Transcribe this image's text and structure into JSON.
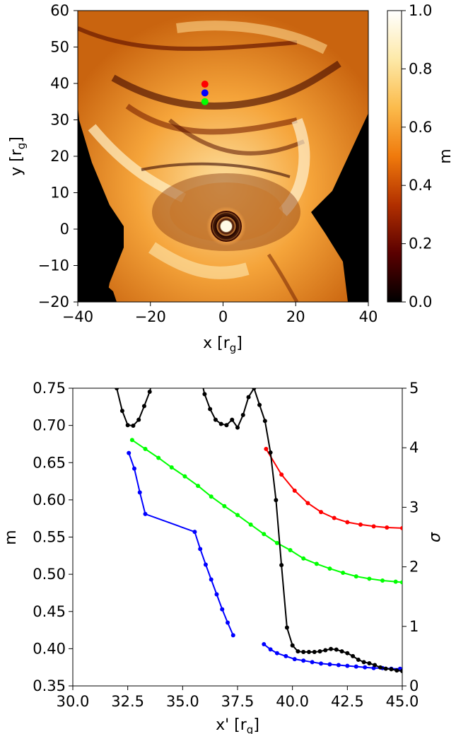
{
  "chart_data": [
    {
      "type": "heatmap",
      "xlabel": "x [r",
      "xlabel_sub": "g",
      "xlabel_close": "]",
      "ylabel": "y [r",
      "ylabel_sub": "g",
      "ylabel_close": "]",
      "xlim": [
        -40,
        40
      ],
      "ylim": [
        -20,
        60
      ],
      "xticks": [
        -40,
        -20,
        0,
        20,
        40
      ],
      "xtick_labels": [
        "−40",
        "−20",
        "0",
        "20",
        "40"
      ],
      "yticks": [
        -20,
        -10,
        0,
        10,
        20,
        30,
        40,
        50,
        60
      ],
      "ytick_labels": [
        "−20",
        "−10",
        "0",
        "10",
        "20",
        "30",
        "40",
        "50",
        "60"
      ],
      "colorbar": {
        "label": "m",
        "range": [
          0.0,
          1.0
        ],
        "ticks": [
          0.0,
          0.2,
          0.4,
          0.6,
          0.8,
          1.0
        ],
        "tick_labels": [
          "0.0",
          "0.2",
          "0.4",
          "0.6",
          "0.8",
          "1.0"
        ],
        "colormap": [
          "#000000",
          "#5a0000",
          "#b12f00",
          "#f07a0c",
          "#fbbb4c",
          "#fde9a8",
          "#ffffff"
        ]
      },
      "markers": [
        {
          "x": -5,
          "y": 39.8,
          "color": "#ff0000"
        },
        {
          "x": -5,
          "y": 37.4,
          "color": "#0000ff"
        },
        {
          "x": -5,
          "y": 35.0,
          "color": "#00ff00"
        }
      ],
      "features": {
        "vortex_center": [
          0.5,
          0.5
        ],
        "empty_region_color": "#000000"
      }
    },
    {
      "type": "line",
      "xlabel": "x' [r",
      "xlabel_sub": "g",
      "xlabel_close": "]",
      "ylabel": "m",
      "ylabel2": "σ",
      "xlim": [
        30.0,
        45.0
      ],
      "ylim": [
        0.35,
        0.75
      ],
      "ylim2": [
        0,
        5
      ],
      "xticks": [
        30.0,
        32.5,
        35.0,
        37.5,
        40.0,
        42.5,
        45.0
      ],
      "xtick_labels": [
        "30.0",
        "32.5",
        "35.0",
        "37.5",
        "40.0",
        "42.5",
        "45.0"
      ],
      "yticks": [
        0.35,
        0.4,
        0.45,
        0.5,
        0.55,
        0.6,
        0.65,
        0.7,
        0.75
      ],
      "ytick_labels": [
        "0.35",
        "0.40",
        "0.45",
        "0.50",
        "0.55",
        "0.60",
        "0.65",
        "0.70",
        "0.75"
      ],
      "yticks2": [
        0,
        1,
        2,
        3,
        4,
        5
      ],
      "ytick_labels2": [
        "0",
        "1",
        "2",
        "3",
        "4",
        "5"
      ],
      "series": [
        {
          "color": "#ff0000",
          "axis": "right",
          "x": [
            38.8,
            39.5,
            40.1,
            40.7,
            41.3,
            41.9,
            42.5,
            43.1,
            43.7,
            44.3,
            45.0
          ],
          "y": [
            3.98,
            3.55,
            3.28,
            3.07,
            2.92,
            2.82,
            2.75,
            2.71,
            2.68,
            2.66,
            2.65
          ]
        },
        {
          "color": "#00ff00",
          "axis": "right",
          "x": [
            32.7,
            33.3,
            33.9,
            34.5,
            35.1,
            35.7,
            36.3,
            36.9,
            37.5,
            38.1,
            38.7,
            39.3,
            39.9,
            40.5,
            41.1,
            41.7,
            42.3,
            42.9,
            43.5,
            44.1,
            44.7,
            45.0
          ],
          "y": [
            4.13,
            3.98,
            3.83,
            3.67,
            3.52,
            3.36,
            3.18,
            3.02,
            2.87,
            2.71,
            2.55,
            2.4,
            2.28,
            2.14,
            2.05,
            1.97,
            1.9,
            1.84,
            1.8,
            1.77,
            1.75,
            1.74
          ]
        },
        {
          "color": "#0000ff",
          "axis": "left",
          "x": [
            32.55,
            32.8,
            33.05,
            33.3,
            35.55,
            35.8,
            36.05,
            36.3,
            36.55,
            36.8,
            37.05,
            37.3,
            37.6,
            38.7,
            39.0,
            39.3,
            39.7,
            40.1,
            40.5,
            40.9,
            41.3,
            41.7,
            42.1,
            42.5,
            42.9,
            43.3,
            43.7,
            44.1,
            44.5,
            44.9
          ],
          "y": [
            0.663,
            0.642,
            0.61,
            0.581,
            0.557,
            0.534,
            0.513,
            0.493,
            0.473,
            0.453,
            0.435,
            0.418,
            null,
            0.406,
            0.399,
            0.394,
            0.39,
            0.386,
            0.384,
            0.382,
            0.38,
            0.379,
            0.378,
            0.377,
            0.376,
            0.375,
            0.374,
            0.374,
            0.373,
            0.373
          ]
        },
        {
          "color": "#000000",
          "axis": "right",
          "x": [
            32.0,
            32.25,
            32.5,
            32.75,
            33.0,
            33.25,
            33.5,
            33.75,
            35.75,
            36.0,
            36.25,
            36.5,
            36.75,
            37.0,
            37.25,
            37.5,
            37.75,
            38.0,
            38.25,
            38.5,
            38.75,
            39.0,
            39.25,
            39.5,
            39.75,
            40.0,
            40.25,
            40.5,
            40.75,
            41.0,
            41.25,
            41.5,
            41.75,
            42.0,
            42.25,
            42.5,
            42.75,
            43.0,
            43.25,
            43.5,
            43.75,
            44.0,
            44.25,
            44.5,
            44.75,
            45.0
          ],
          "y": [
            5.0,
            4.62,
            4.38,
            4.37,
            4.47,
            4.7,
            4.94,
            5.3,
            5.3,
            4.9,
            4.65,
            4.47,
            4.4,
            4.38,
            4.47,
            4.34,
            4.55,
            4.85,
            5.0,
            4.72,
            4.45,
            3.92,
            3.12,
            2.03,
            0.98,
            0.68,
            0.58,
            0.57,
            0.57,
            0.57,
            0.58,
            0.6,
            0.62,
            0.61,
            0.58,
            0.55,
            0.5,
            0.44,
            0.4,
            0.38,
            0.35,
            0.31,
            0.29,
            0.28,
            0.26,
            0.25
          ]
        }
      ]
    }
  ]
}
